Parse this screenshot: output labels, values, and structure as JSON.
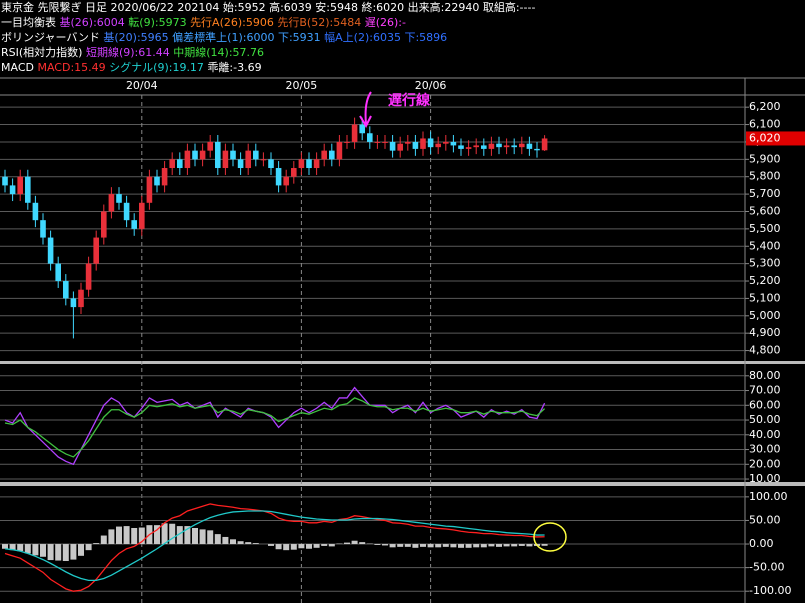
{
  "header": {
    "lines": [
      [
        {
          "text": "東京金 先限繋ぎ 日足 2020/06/22 202104 始:5952 高:6039 安:5948 終:6020 出来高:22940 取組高:----",
          "color": "#ffffff"
        }
      ],
      [
        {
          "text": "一目均衡表",
          "color": "#ffffff"
        },
        {
          "text": "基(26):6004",
          "color": "#d040ff"
        },
        {
          "text": "転(9):5973",
          "color": "#40e040"
        },
        {
          "text": "先行A(26):5906",
          "color": "#ff8020"
        },
        {
          "text": "先行B(52):5484",
          "color": "#e06020"
        },
        {
          "text": "遅(26):-",
          "color": "#ff40ff"
        }
      ],
      [
        {
          "text": "ボリンジャーバンド",
          "color": "#ffffff"
        },
        {
          "text": "基(20):5965",
          "color": "#4080ff"
        },
        {
          "text": "偏差標準上(1):6000 下:5931",
          "color": "#40a0ff"
        },
        {
          "text": "幅A上(2):6035 下:5896",
          "color": "#3070ff"
        }
      ],
      [
        {
          "text": "RSI(相対力指数)",
          "color": "#ffffff"
        },
        {
          "text": "短期線(9):61.44",
          "color": "#d040ff"
        },
        {
          "text": "中期線(14):57.76",
          "color": "#40e040"
        }
      ],
      [
        {
          "text": "MACD",
          "color": "#ffffff"
        },
        {
          "text": "MACD:15.49",
          "color": "#ff3030"
        },
        {
          "text": "シグナル(9):19.17",
          "color": "#20d0d0"
        },
        {
          "text": "乖離:-3.69",
          "color": "#ffffff"
        }
      ]
    ]
  },
  "chart_data": [
    {
      "type": "candlestick",
      "categories": [
        null,
        null,
        null,
        null,
        null,
        null,
        null,
        null,
        null,
        null,
        null,
        null,
        null,
        null,
        null,
        null,
        null,
        null,
        "20/04",
        null,
        null,
        null,
        null,
        null,
        null,
        null,
        null,
        null,
        null,
        null,
        null,
        null,
        null,
        null,
        null,
        null,
        null,
        null,
        null,
        "20/05",
        null,
        null,
        null,
        null,
        null,
        null,
        null,
        null,
        null,
        null,
        null,
        null,
        null,
        null,
        null,
        null,
        "20/06",
        null,
        null,
        null,
        null,
        null,
        null,
        null,
        null,
        null,
        null,
        null,
        null,
        null,
        null,
        null
      ],
      "open": [
        5800,
        5750,
        5700,
        5800,
        5650,
        5550,
        5450,
        5300,
        5200,
        5100,
        5050,
        5150,
        5300,
        5450,
        5600,
        5700,
        5650,
        5550,
        5500,
        5650,
        5800,
        5750,
        5850,
        5900,
        5850,
        5950,
        5900,
        5950,
        6000,
        5850,
        5950,
        5900,
        5850,
        5950,
        5900,
        5900,
        5850,
        5750,
        5800,
        5850,
        5900,
        5850,
        5900,
        5950,
        5900,
        6000,
        6000,
        6100,
        6050,
        6000,
        6000,
        6000,
        5950,
        5990,
        6000,
        5960,
        6020,
        5970,
        5990,
        6000,
        5980,
        5960,
        5970,
        5980,
        5960,
        5990,
        5970,
        5980,
        5970,
        5990,
        5960,
        5952
      ],
      "high": [
        5840,
        5790,
        5840,
        5840,
        5690,
        5590,
        5490,
        5340,
        5240,
        5140,
        5190,
        5340,
        5490,
        5640,
        5740,
        5740,
        5690,
        5590,
        5690,
        5840,
        5840,
        5890,
        5940,
        5940,
        5990,
        5990,
        5990,
        6040,
        6040,
        5990,
        5990,
        5940,
        5990,
        5990,
        5940,
        5940,
        5890,
        5840,
        5890,
        5940,
        5940,
        5940,
        5990,
        5990,
        6040,
        6040,
        6140,
        6140,
        6090,
        6040,
        6040,
        6040,
        6030,
        6040,
        6040,
        6060,
        6060,
        6030,
        6040,
        6040,
        6020,
        6010,
        6020,
        6020,
        6030,
        6030,
        6020,
        6020,
        6030,
        6030,
        6000,
        6039
      ],
      "low": [
        5710,
        5660,
        5660,
        5610,
        5510,
        5410,
        5260,
        5160,
        5060,
        4870,
        5010,
        5110,
        5260,
        5410,
        5560,
        5610,
        5510,
        5460,
        5460,
        5610,
        5710,
        5710,
        5810,
        5810,
        5810,
        5860,
        5860,
        5910,
        5810,
        5810,
        5860,
        5810,
        5810,
        5860,
        5860,
        5810,
        5710,
        5710,
        5760,
        5810,
        5810,
        5810,
        5860,
        5860,
        5860,
        5960,
        5960,
        6010,
        5960,
        5960,
        5960,
        5910,
        5910,
        5950,
        5920,
        5920,
        5930,
        5930,
        5950,
        5940,
        5920,
        5920,
        5930,
        5920,
        5920,
        5930,
        5930,
        5930,
        5930,
        5920,
        5910,
        5948
      ],
      "close": [
        5750,
        5700,
        5800,
        5650,
        5550,
        5450,
        5300,
        5200,
        5100,
        5050,
        5150,
        5300,
        5450,
        5600,
        5700,
        5650,
        5550,
        5500,
        5650,
        5800,
        5750,
        5850,
        5900,
        5850,
        5950,
        5900,
        5950,
        6000,
        5850,
        5950,
        5900,
        5850,
        5950,
        5900,
        5900,
        5850,
        5750,
        5800,
        5850,
        5900,
        5850,
        5900,
        5950,
        5900,
        6000,
        6000,
        6100,
        6050,
        6000,
        6000,
        6000,
        5950,
        5990,
        6000,
        5960,
        6020,
        5970,
        5990,
        6000,
        5980,
        5960,
        5970,
        5980,
        5960,
        5990,
        5970,
        5980,
        5970,
        5990,
        5960,
        5952,
        6020
      ],
      "up_color": "#e8303a",
      "down_color": "#40d8ff",
      "ylim": [
        4740,
        6270
      ],
      "yticks": [
        {
          "value": 4800,
          "label": "4,800"
        },
        {
          "value": 4900,
          "label": "4,900"
        },
        {
          "value": 5000,
          "label": "5,000"
        },
        {
          "value": 5100,
          "label": "5,100"
        },
        {
          "value": 5200,
          "label": "5,200"
        },
        {
          "value": 5300,
          "label": "5,300"
        },
        {
          "value": 5400,
          "label": "5,400"
        },
        {
          "value": 5500,
          "label": "5,500"
        },
        {
          "value": 5600,
          "label": "5,600"
        },
        {
          "value": 5700,
          "label": "5,700"
        },
        {
          "value": 5800,
          "label": "5,800"
        },
        {
          "value": 5900,
          "label": "5,900"
        },
        {
          "value": 6000,
          "label": "6,000"
        },
        {
          "value": 6100,
          "label": "6,100"
        },
        {
          "value": 6200,
          "label": "6,200"
        }
      ],
      "last_price": {
        "value": 6020,
        "label": "6,020"
      },
      "annotation": "遅行線",
      "grid": true
    },
    {
      "type": "line",
      "ylim": [
        8,
        88
      ],
      "yticks": [
        {
          "value": 10,
          "label": "10.00"
        },
        {
          "value": 20,
          "label": "20.00"
        },
        {
          "value": 30,
          "label": "30.00"
        },
        {
          "value": 40,
          "label": "40.00"
        },
        {
          "value": 50,
          "label": "50.00"
        },
        {
          "value": 60,
          "label": "60.00"
        },
        {
          "value": 70,
          "label": "70.00"
        },
        {
          "value": 80,
          "label": "80.00"
        }
      ],
      "series": [
        {
          "color": "#b040ff",
          "values": [
            50,
            48,
            55,
            45,
            40,
            35,
            30,
            25,
            22,
            20,
            30,
            40,
            50,
            60,
            65,
            62,
            55,
            52,
            58,
            65,
            62,
            63,
            64,
            60,
            62,
            58,
            60,
            62,
            52,
            58,
            55,
            52,
            58,
            56,
            55,
            52,
            45,
            50,
            55,
            58,
            55,
            58,
            62,
            58,
            65,
            65,
            72,
            66,
            60,
            60,
            60,
            55,
            58,
            60,
            55,
            62,
            55,
            58,
            60,
            57,
            52,
            54,
            56,
            52,
            57,
            54,
            56,
            54,
            57,
            52,
            51,
            61.44
          ]
        },
        {
          "color": "#40c040",
          "values": [
            48,
            47,
            50,
            45,
            42,
            38,
            34,
            30,
            27,
            25,
            30,
            36,
            44,
            52,
            57,
            57,
            54,
            52,
            55,
            60,
            59,
            60,
            61,
            59,
            60,
            58,
            59,
            60,
            55,
            57,
            56,
            54,
            57,
            56,
            55,
            53,
            49,
            51,
            53,
            55,
            54,
            56,
            58,
            57,
            60,
            61,
            65,
            63,
            60,
            59,
            59,
            57,
            58,
            58,
            56,
            58,
            56,
            57,
            58,
            57,
            55,
            55,
            56,
            54,
            56,
            55,
            55,
            55,
            56,
            54,
            53,
            57.76
          ]
        }
      ],
      "grid": true
    },
    {
      "type": "line",
      "ylim": [
        -125,
        123
      ],
      "yticks": [
        {
          "value": -100,
          "label": "-100.00"
        },
        {
          "value": -50,
          "label": "-50.00"
        },
        {
          "value": 0,
          "label": "0.00"
        },
        {
          "value": 50,
          "label": "50.00"
        },
        {
          "value": 100,
          "label": "100.00"
        }
      ],
      "series": [
        {
          "kind": "bar",
          "color": "#c8c8c8",
          "values": [
            -10,
            -13,
            -15,
            -20,
            -24,
            -27,
            -34,
            -35,
            -36,
            -33,
            -25,
            -13,
            2,
            18,
            31,
            37,
            38,
            34,
            35,
            40,
            40,
            44,
            43,
            38,
            38,
            34,
            31,
            29,
            21,
            15,
            10,
            6,
            4,
            2,
            0,
            -4,
            -11,
            -13,
            -12,
            -9,
            -10,
            -8,
            -4,
            -5,
            1,
            3,
            7,
            4,
            1,
            -2,
            -3,
            -7,
            -6,
            -6,
            -8,
            -6,
            -7,
            -7,
            -6,
            -7,
            -8,
            -8,
            -7,
            -7,
            -5,
            -6,
            -5,
            -5,
            -4,
            -5,
            -4,
            -3.69
          ]
        },
        {
          "color": "#ff2020",
          "values": [
            -20,
            -25,
            -30,
            -40,
            -50,
            -60,
            -75,
            -85,
            -95,
            -100,
            -98,
            -90,
            -75,
            -55,
            -35,
            -20,
            -10,
            -5,
            5,
            20,
            30,
            45,
            55,
            60,
            70,
            75,
            80,
            85,
            82,
            80,
            78,
            75,
            74,
            72,
            70,
            65,
            55,
            50,
            48,
            48,
            45,
            45,
            48,
            46,
            52,
            54,
            60,
            58,
            55,
            52,
            50,
            45,
            44,
            42,
            38,
            38,
            35,
            33,
            32,
            30,
            27,
            25,
            24,
            22,
            22,
            20,
            19,
            18,
            18,
            16,
            15,
            15.49
          ]
        },
        {
          "color": "#20c8c8",
          "values": [
            -10,
            -12,
            -15,
            -20,
            -26,
            -33,
            -41,
            -50,
            -59,
            -67,
            -73,
            -77,
            -77,
            -73,
            -66,
            -57,
            -48,
            -39,
            -30,
            -20,
            -10,
            1,
            12,
            22,
            32,
            41,
            49,
            56,
            61,
            65,
            68,
            69,
            70,
            70,
            70,
            69,
            66,
            63,
            60,
            57,
            55,
            53,
            52,
            51,
            51,
            51,
            53,
            54,
            54,
            54,
            53,
            52,
            50,
            48,
            46,
            44,
            42,
            40,
            38,
            37,
            35,
            33,
            31,
            29,
            27,
            26,
            24,
            23,
            22,
            21,
            19,
            19.17
          ]
        }
      ],
      "grid": true
    }
  ]
}
